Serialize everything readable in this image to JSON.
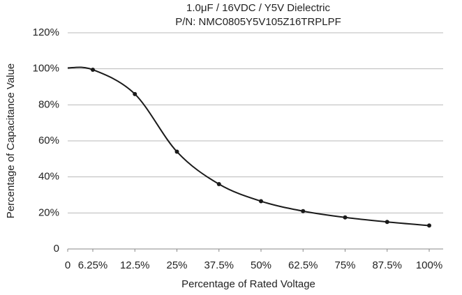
{
  "chart_data": {
    "type": "line",
    "title": "1.0μF / 16VDC / Y5V Dielectric",
    "subtitle": "P/N: NMC0805Y5V105Z16TRPLPF",
    "x_label": "Percentage of Rated Voltage",
    "y_label": "Percentage of Capacitance Value",
    "categories": [
      "0",
      "6.25%",
      "12.5%",
      "25%",
      "37.5%",
      "50%",
      "62.5%",
      "75%",
      "87.5%",
      "100%"
    ],
    "series": [
      {
        "name": "Capacitance",
        "color": "#1a1a1a",
        "values": [
          100.5,
          99.5,
          86,
          54,
          36,
          26.5,
          21,
          17.5,
          15,
          13
        ]
      }
    ],
    "ylim": [
      0,
      120
    ],
    "yticks": [
      0,
      {
        "value": 20,
        "label": "20%"
      },
      {
        "value": 40,
        "label": "40%"
      },
      {
        "value": 60,
        "label": "60%"
      },
      {
        "value": 80,
        "label": "80%"
      },
      {
        "value": 100,
        "label": "100%"
      },
      {
        "value": 120,
        "label": "120%"
      }
    ],
    "grid": true
  }
}
